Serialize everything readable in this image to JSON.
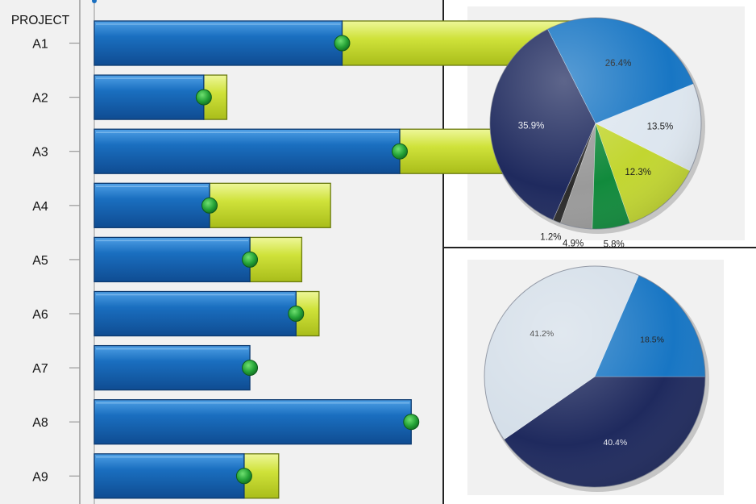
{
  "chart_data": [
    {
      "type": "bar",
      "ylabel": "PROJECT",
      "categories": [
        "A1",
        "A2",
        "A3",
        "A4",
        "A5",
        "A6",
        "A7",
        "A8",
        "A9"
      ],
      "series": [
        {
          "values": [
            43,
            19,
            53,
            20,
            27,
            35,
            27,
            55,
            26
          ]
        },
        {
          "values": [
            43,
            4,
            29,
            21,
            9,
            4,
            0,
            0,
            6
          ]
        }
      ],
      "markers": [
        43,
        19,
        53,
        20,
        27,
        35,
        27,
        55,
        26
      ],
      "colors": {
        "blue": "#1a6fc0",
        "yellow": "#c8dc2a",
        "marker": "#2aa83a"
      }
    },
    {
      "type": "pie",
      "labels": [
        "35.9%",
        "1.2%",
        "4.9%",
        "5.8%",
        "12.3%",
        "13.5%",
        "26.4%"
      ],
      "values": [
        35.9,
        1.2,
        4.9,
        5.8,
        12.3,
        13.5,
        26.4
      ],
      "colors": [
        "#1f2a5e",
        "#2b2b2b",
        "#9a9a9a",
        "#118a3c",
        "#c2d630",
        "#dde6ef",
        "#1876c4"
      ]
    },
    {
      "type": "pie",
      "labels": [
        "40.4%",
        "41.2%",
        "18.5%"
      ],
      "values": [
        40.4,
        41.2,
        18.5
      ],
      "colors": [
        "#1f2a5e",
        "#d5dfe9",
        "#1876c4"
      ]
    }
  ]
}
